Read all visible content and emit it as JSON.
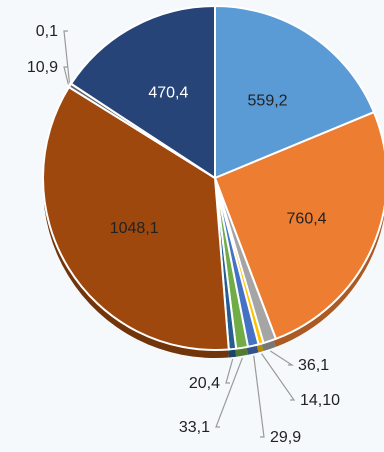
{
  "chart_data": {
    "type": "pie",
    "title": "",
    "values": [
      559.2,
      760.4,
      36.1,
      14.1,
      29.9,
      33.1,
      20.4,
      1048.1,
      10.9,
      0.1,
      470.4
    ],
    "labels": [
      "559,2",
      "760,4",
      "36,1",
      "14,10",
      "29,9",
      "33,1",
      "20,4",
      "1048,1",
      "10,9",
      "0,1",
      "470,4"
    ],
    "colors": [
      "#5b9bd5",
      "#ed7d31",
      "#a5a5a5",
      "#ffc000",
      "#4472c4",
      "#70ad47",
      "#255e91",
      "#9e480e",
      "#636363",
      "#997300",
      "#264478"
    ],
    "start_angle_deg": 0,
    "direction": "clockwise",
    "style": "3d-tilted"
  }
}
